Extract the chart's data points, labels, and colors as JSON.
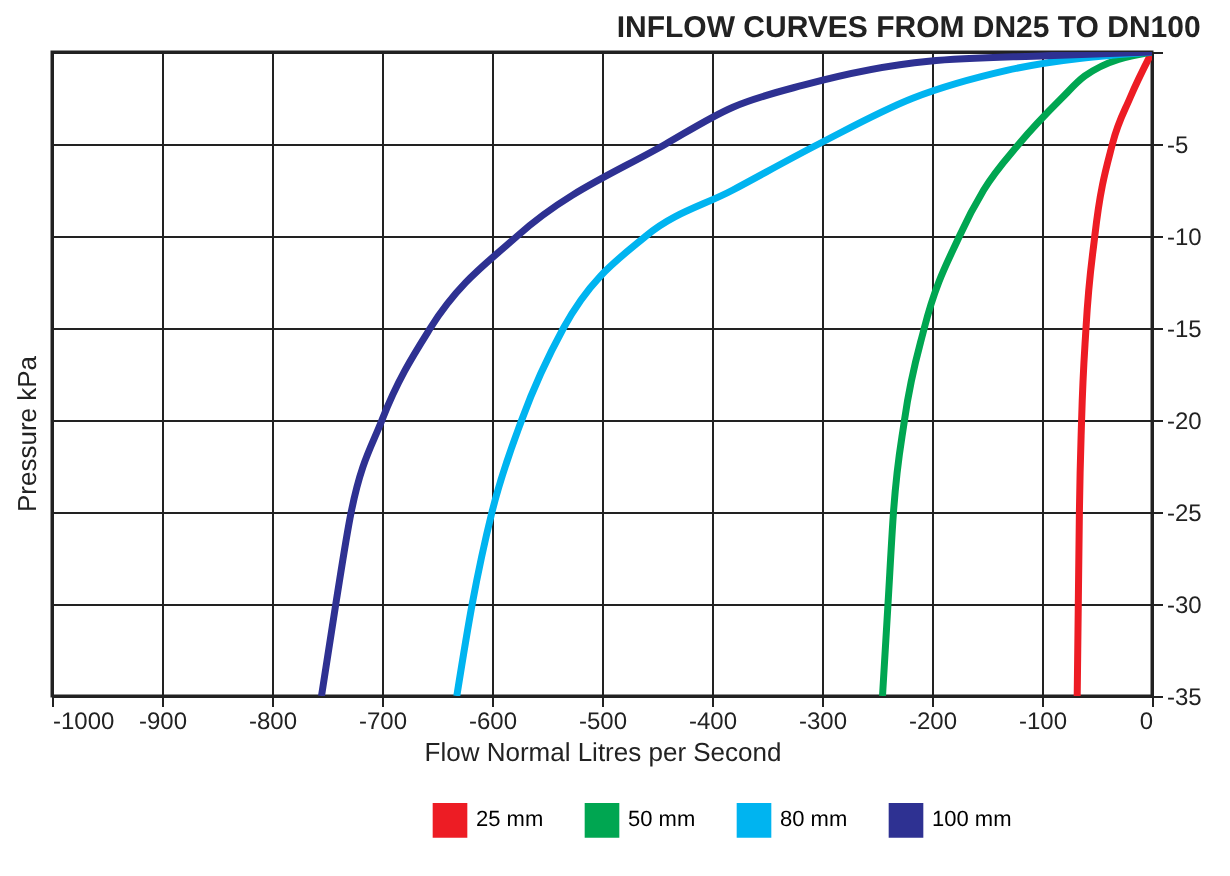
{
  "chart_data": {
    "type": "line",
    "title": "INFLOW CURVES FROM DN25 TO DN100",
    "xlabel": "Flow Normal Litres per Second",
    "ylabel": "Pressure  kPa",
    "xlim": [
      -1000,
      0
    ],
    "xticks": [
      -1000,
      -900,
      -800,
      -700,
      -600,
      -500,
      -400,
      -300,
      -200,
      -100,
      0
    ],
    "ylim": [
      -35,
      0
    ],
    "yticks": [
      {
        "value": 0,
        "label": null
      },
      -5,
      -10,
      -15,
      -20,
      -25,
      -30,
      -35
    ],
    "grid": true,
    "legend": "bottom",
    "line_style": "solid",
    "series": [
      {
        "name": "25 mm",
        "color": "#ed1c24",
        "x": [
          0,
          -20,
          -36,
          -52,
          -60,
          -64,
          -66,
          -67,
          -68
        ],
        "values": [
          0,
          -2.5,
          -5,
          -10,
          -15,
          -20,
          -25,
          -30,
          -35
        ]
      },
      {
        "name": "50 mm",
        "color": "#00a651",
        "x": [
          0,
          -61,
          -82,
          -121,
          -153,
          -175,
          -207,
          -225,
          -235,
          -240,
          -245
        ],
        "values": [
          0,
          -1.3,
          -2.5,
          -5,
          -7.5,
          -10,
          -15,
          -20,
          -25,
          -30,
          -35
        ]
      },
      {
        "name": "80 mm",
        "color": "#00b4f0",
        "x": [
          0,
          -132,
          -217,
          -303,
          -381,
          -460,
          -535,
          -573,
          -600,
          -618,
          -632
        ],
        "values": [
          0,
          -1,
          -2.5,
          -5,
          -7.5,
          -10,
          -15,
          -20,
          -25,
          -30,
          -35
        ]
      },
      {
        "name": "100 mm",
        "color": "#2e3192",
        "x": [
          0,
          -96,
          -203,
          -317,
          -381,
          -442,
          -577,
          -656,
          -700,
          -728,
          -742,
          -755
        ],
        "values": [
          0,
          -0.2,
          -0.5,
          -1.8,
          -3,
          -5,
          -10,
          -15,
          -20,
          -25,
          -30,
          -35
        ]
      }
    ]
  }
}
